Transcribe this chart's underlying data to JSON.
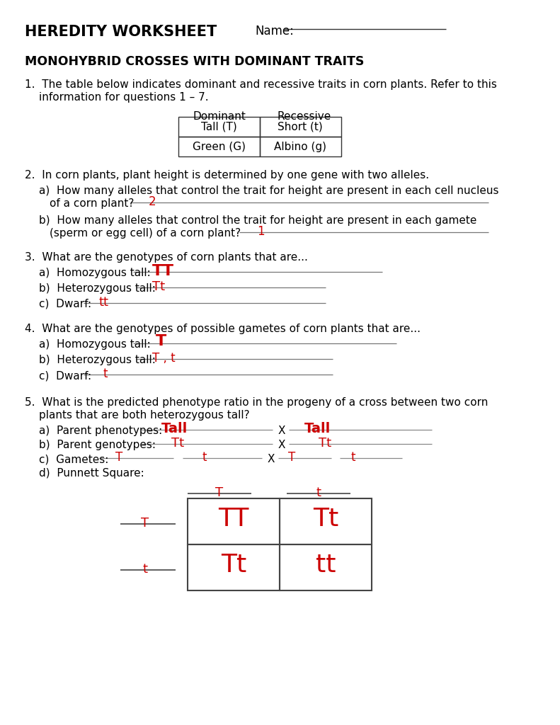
{
  "title": "HEREDITY WORKSHEET",
  "name_label": "Name:",
  "section_title": "MONOHYBRID CROSSES WITH DOMINANT TRAITS",
  "background": "#ffffff",
  "text_color": "#000000",
  "answer_color": "#cc0000",
  "table_rows": [
    [
      "Tall (T)",
      "Short (t)"
    ],
    [
      "Green (G)",
      "Albino (g)"
    ]
  ],
  "q2a_ans": "2",
  "q2b_ans": "1",
  "q3a_ans": "TT",
  "q3b_ans": "Tt",
  "q3c_ans": "tt",
  "q4a_ans": "T",
  "q4b_ans": "T , t",
  "q4c_ans": "t",
  "q5a_ans1": "Tall",
  "q5a_ans2": "Tall",
  "q5b_ans1": "Tt",
  "q5b_ans2": "Tt",
  "q5c_ans1a": "T",
  "q5c_ans1b": "t",
  "q5c_ans2a": "T",
  "q5c_ans2b": "t",
  "punnett_col1": "T",
  "punnett_col2": "t",
  "punnett_row1": "T",
  "punnett_row2": "t",
  "punnett_cells": [
    [
      "TT",
      "Tt"
    ],
    [
      "Tt",
      "tt"
    ]
  ]
}
